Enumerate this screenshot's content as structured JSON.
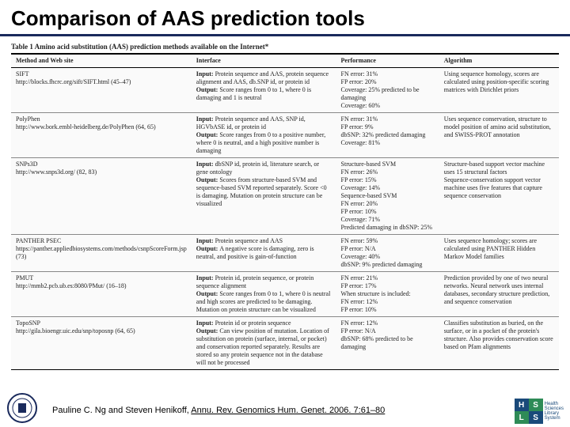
{
  "title": "Comparison of AAS prediction tools",
  "table": {
    "caption": "Table 1   Amino acid substitution (AAS) prediction methods available on the Internet*",
    "columns": [
      "Method and Web site",
      "Interface",
      "Performance",
      "Algorithm"
    ],
    "rows": [
      {
        "method_name": "SIFT",
        "method_url": "http://blocks.fhcrc.org/sift/SIFT.html (45–47)",
        "input": "Protein sequence and AAS, protein sequence alignment and AAS, db.SNP id, or protein id",
        "output": "Score ranges from 0 to 1, where 0 is damaging and 1 is neutral",
        "performance": "FN error: 31%\nFP error: 20%\nCoverage: 25% predicted to be damaging\nCoverage: 60%",
        "algorithm": "Using sequence homology, scores are calculated using position-specific scoring matrices with Dirichlet priors"
      },
      {
        "method_name": "PolyPhen",
        "method_url": "http://www.bork.embl-heidelberg.de/PolyPhen (64, 65)",
        "input": "Protein sequence and AAS, SNP id, HGVbASE id, or protein id",
        "output": "Score ranges from 0 to a positive number, where 0 is neutral, and a high positive number is damaging",
        "performance": "FN error: 31%\nFP error: 9%\ndbSNP: 32% predicted damaging\nCoverage: 81%",
        "algorithm": "Uses sequence conservation, structure to model position of amino acid substitution, and SWISS-PROT annotation"
      },
      {
        "method_name": "SNPs3D",
        "method_url": "http://www.snps3d.org/ (82, 83)",
        "input": "dbSNP id, protein id, literature search, or gene ontology",
        "output": "Scores from structure-based SVM and sequence-based SVM reported separately. Score <0 is damaging. Mutation on protein structure can be visualized",
        "performance": "Structure-based SVM\nFN error: 26%\nFP error: 15%\nCoverage: 14%\nSequence-based SVM\nFN error: 20%\nFP error: 10%\nCoverage: 71%\nPredicted damaging in dbSNP: 25%",
        "algorithm": "Structure-based support vector machine uses 15 structural factors\nSequence-conservation support vector machine uses five features that capture sequence conservation"
      },
      {
        "method_name": "PANTHER PSEC",
        "method_url": "https://panther.appliedbiosystems.com/methods/csnpScoreForm.jsp (73)",
        "input": "Protein sequence and AAS",
        "output": "A negative score is damaging, zero is neutral, and positive is gain-of-function",
        "performance": "FN error: 59%\nFP error: N/A\nCoverage: 40%\ndbSNP: 9% predicted damaging",
        "algorithm": "Uses sequence homology; scores are calculated using PANTHER Hidden Markov Model families"
      },
      {
        "method_name": "PMUT",
        "method_url": "http://mmb2.pcb.ub.es:8080/PMut/ (16–18)",
        "input": "Protein id, protein sequence, or protein sequence alignment",
        "output": "Score ranges from 0 to 1, where 0 is neutral and high scores are predicted to be damaging. Mutation on protein structure can be visualized",
        "performance": "FN error: 21%\nFP error: 17%\nWhen structure is included:\nFN error: 12%\nFP error: 10%",
        "algorithm": "Prediction provided by one of two neural networks. Neural network uses internal databases, secondary structure prediction, and sequence conservation"
      },
      {
        "method_name": "TopoSNP",
        "method_url": "http://gila.bioengr.uic.edu/snp/toposnp (64, 65)",
        "input": "Protein id or protein sequence",
        "output": "Can view position of mutation. Location of substitution on protein (surface, internal, or pocket) and conservation reported separately. Results are stored so any protein sequence not in the database will not be processed",
        "performance": "FN error: 12%\nFP error: N/A\ndbSNP: 68% predicted to be damaging",
        "algorithm": "Classifies substitution as buried, on the surface, or in a pocket of the protein's structure. Also provides conservation score based on Pfam alignments"
      }
    ]
  },
  "citation": {
    "authors": "Pauline C. Ng and Steven Henikoff, ",
    "journal": "Annu. Rev. Genomics Hum. Genet. 2006. 7:61–80"
  },
  "colors": {
    "title_rule": "#1a2a5c",
    "table_border": "#000000",
    "row_border": "#888888",
    "bg": "#ffffff",
    "hsls_blue": "#1a4a7a",
    "hsls_green": "#2e8b57"
  }
}
